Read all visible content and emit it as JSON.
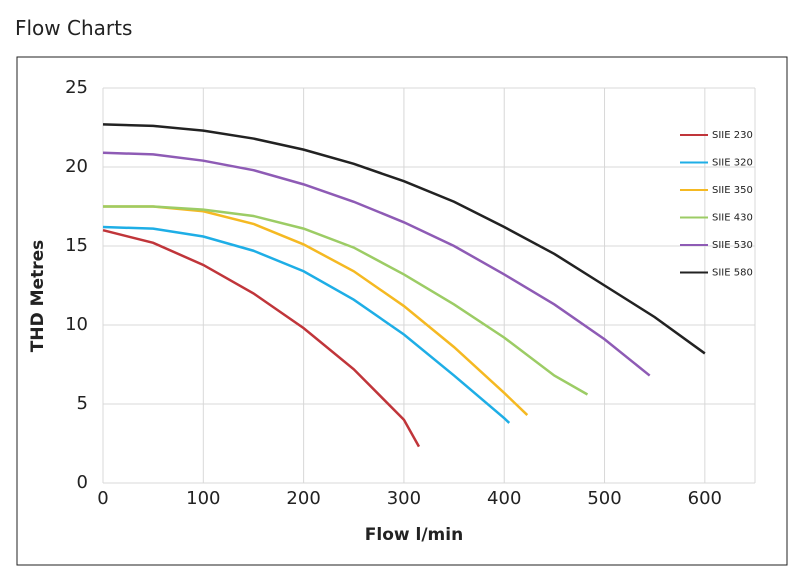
{
  "page_title": "Flow Charts",
  "chart_data": {
    "type": "line",
    "x_label": "Flow l/min",
    "y_label": "THD Metres",
    "xlim": [
      0,
      650
    ],
    "xticks": [
      0,
      100,
      200,
      300,
      400,
      500,
      600
    ],
    "ylim": [
      0,
      25
    ],
    "yticks": [
      0,
      5,
      10,
      15,
      20,
      25
    ],
    "grid": true,
    "legend": "upper right",
    "series": [
      {
        "name": "SIIE 230",
        "color": "#c0353a",
        "x": [
          0,
          50,
          100,
          150,
          200,
          250,
          300,
          315
        ],
        "values": [
          16,
          15.2,
          13.8,
          12,
          9.8,
          7.2,
          4,
          2.3
        ]
      },
      {
        "name": "SIIE 320",
        "color": "#1eaee6",
        "x": [
          0,
          50,
          100,
          150,
          200,
          250,
          300,
          350,
          400,
          405
        ],
        "values": [
          16.2,
          16.1,
          15.6,
          14.7,
          13.4,
          11.6,
          9.4,
          6.8,
          4.1,
          3.8
        ]
      },
      {
        "name": "SIIE 350",
        "color": "#f5b922",
        "x": [
          0,
          50,
          100,
          150,
          200,
          250,
          300,
          350,
          400,
          423
        ],
        "values": [
          17.5,
          17.5,
          17.2,
          16.4,
          15.1,
          13.4,
          11.2,
          8.6,
          5.7,
          4.3
        ]
      },
      {
        "name": "SIIE 430",
        "color": "#9ccc65",
        "x": [
          0,
          50,
          100,
          150,
          200,
          250,
          300,
          350,
          400,
          450,
          483
        ],
        "values": [
          17.5,
          17.5,
          17.3,
          16.9,
          16.1,
          14.9,
          13.2,
          11.3,
          9.2,
          6.8,
          5.6
        ]
      },
      {
        "name": "SIIE 530",
        "color": "#8e5bb5",
        "x": [
          0,
          50,
          100,
          150,
          200,
          250,
          300,
          350,
          400,
          450,
          500,
          545
        ],
        "values": [
          20.9,
          20.8,
          20.4,
          19.8,
          18.9,
          17.8,
          16.5,
          15,
          13.2,
          11.3,
          9.1,
          6.8
        ]
      },
      {
        "name": "SIIE 580",
        "color": "#222222",
        "x": [
          0,
          50,
          100,
          150,
          200,
          250,
          300,
          350,
          400,
          450,
          500,
          550,
          600
        ],
        "values": [
          22.7,
          22.6,
          22.3,
          21.8,
          21.1,
          20.2,
          19.1,
          17.8,
          16.2,
          14.5,
          12.5,
          10.5,
          8.2
        ]
      }
    ]
  }
}
